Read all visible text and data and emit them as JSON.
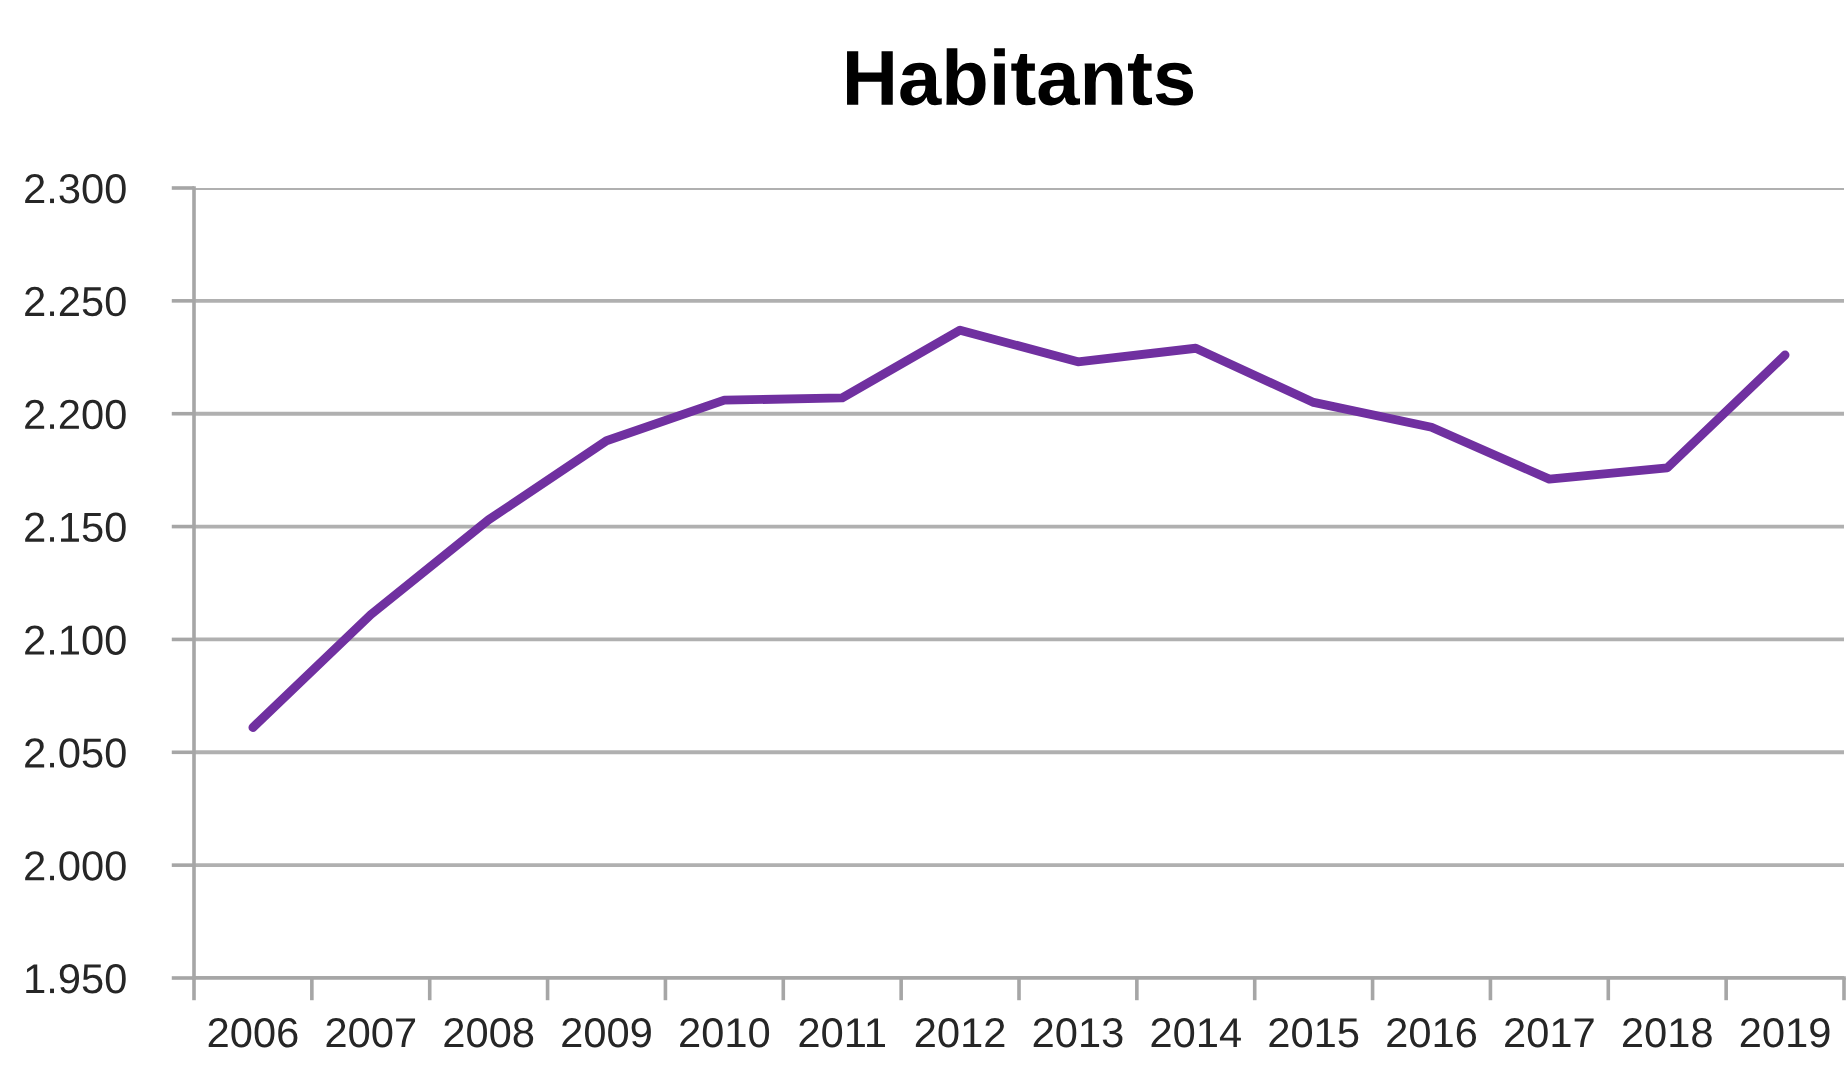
{
  "chart_data": {
    "type": "line",
    "title": "Habitants",
    "categories": [
      "2006",
      "2007",
      "2008",
      "2009",
      "2010",
      "2011",
      "2012",
      "2013",
      "2014",
      "2015",
      "2016",
      "2017",
      "2018",
      "2019"
    ],
    "series": [
      {
        "color": "#7030a0",
        "values": [
          2061,
          2111,
          2153,
          2188,
          2206,
          2207,
          2237,
          2223,
          2229,
          2205,
          2194,
          2171,
          2176,
          2226
        ]
      }
    ],
    "ylim": [
      1950,
      2300
    ],
    "yticks": [
      {
        "value": 1950,
        "label": "1.950"
      },
      {
        "value": 2000,
        "label": "2.000"
      },
      {
        "value": 2050,
        "label": "2.050"
      },
      {
        "value": 2100,
        "label": "2.100"
      },
      {
        "value": 2150,
        "label": "2.150"
      },
      {
        "value": 2200,
        "label": "2.200"
      },
      {
        "value": 2250,
        "label": "2.250"
      },
      {
        "value": 2300,
        "label": "2.300"
      }
    ],
    "grid": "y"
  }
}
